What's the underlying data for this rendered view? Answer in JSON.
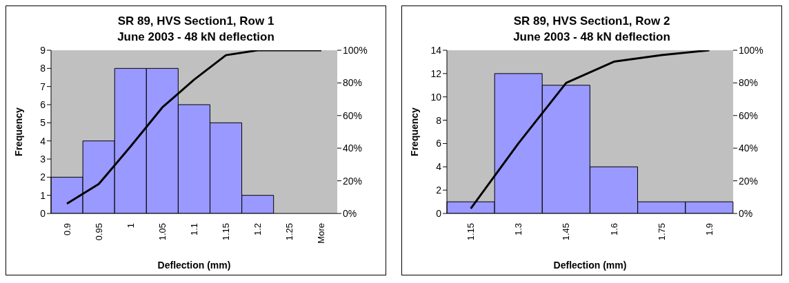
{
  "chart_data": [
    {
      "type": "bar",
      "title": "SR 89, HVS Section1, Row 1",
      "subtitle": "June 2003 - 48 kN deflection",
      "xlabel": "Deflection (mm)",
      "ylabel": "Frequency",
      "categories": [
        "0.9",
        "0.95",
        "1",
        "1.05",
        "1.1",
        "1.15",
        "1.2",
        "1.25",
        "More"
      ],
      "ylim": [
        0,
        9
      ],
      "yticks": [
        0,
        1,
        2,
        3,
        4,
        5,
        6,
        7,
        8,
        9
      ],
      "y2lim": [
        0,
        100
      ],
      "y2ticks": [
        {
          "value": 0,
          "label": "0%"
        },
        {
          "value": 20,
          "label": "20%"
        },
        {
          "value": 40,
          "label": "40%"
        },
        {
          "value": 60,
          "label": "60%"
        },
        {
          "value": 80,
          "label": "80%"
        },
        {
          "value": 100,
          "label": "100%"
        }
      ],
      "grid": false,
      "legend": false,
      "series": [
        {
          "color": "#9999ff",
          "values": [
            2,
            4,
            8,
            8,
            6,
            5,
            1,
            0,
            0
          ]
        },
        {
          "type": "line",
          "axis": "y2",
          "color": "#000000",
          "marker": "none",
          "values": [
            6,
            18,
            41,
            65,
            82,
            97,
            100,
            100,
            100
          ]
        }
      ]
    },
    {
      "type": "bar",
      "title": "SR 89, HVS Section1, Row 2",
      "subtitle": "June 2003 - 48 kN deflection",
      "xlabel": "Deflection (mm)",
      "ylabel": "Frequency",
      "categories": [
        "1.15",
        "1.3",
        "1.45",
        "1.6",
        "1.75",
        "1.9"
      ],
      "ylim": [
        0,
        14
      ],
      "yticks": [
        0,
        2,
        4,
        6,
        8,
        10,
        12,
        14
      ],
      "y2lim": [
        0,
        100
      ],
      "y2ticks": [
        {
          "value": 0,
          "label": "0%"
        },
        {
          "value": 20,
          "label": "20%"
        },
        {
          "value": 40,
          "label": "40%"
        },
        {
          "value": 60,
          "label": "60%"
        },
        {
          "value": 80,
          "label": "80%"
        },
        {
          "value": 100,
          "label": "100%"
        }
      ],
      "grid": false,
      "legend": false,
      "series": [
        {
          "color": "#9999ff",
          "values": [
            1,
            12,
            11,
            4,
            1,
            1
          ]
        },
        {
          "type": "line",
          "axis": "y2",
          "color": "#000000",
          "marker": "none",
          "values": [
            3,
            43,
            80,
            93,
            97,
            100
          ]
        }
      ]
    }
  ]
}
